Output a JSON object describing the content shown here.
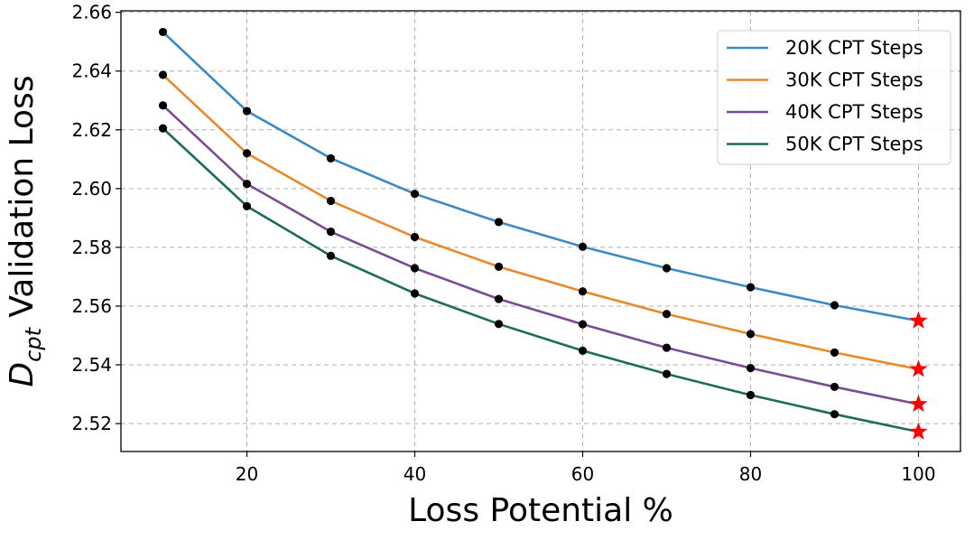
{
  "chart_data": {
    "type": "line",
    "title": "",
    "xlabel": "Loss Potential %",
    "ylabel_main": "D",
    "ylabel_sub": "cpt",
    "ylabel_rest": " Validation Loss",
    "x": [
      10,
      20,
      30,
      40,
      50,
      60,
      70,
      80,
      90,
      100
    ],
    "xlim": [
      5,
      105
    ],
    "ylim": [
      2.5105,
      2.6605
    ],
    "xticks": [
      20,
      40,
      60,
      80,
      100
    ],
    "xtick_labels": [
      "20",
      "40",
      "60",
      "80",
      "100"
    ],
    "yticks": [
      2.52,
      2.54,
      2.56,
      2.58,
      2.6,
      2.62,
      2.64,
      2.66
    ],
    "ytick_labels": [
      "2.52",
      "2.54",
      "2.56",
      "2.58",
      "2.60",
      "2.62",
      "2.64",
      "2.66"
    ],
    "grid": true,
    "legend_position": "top-right",
    "marker_color": "#000000",
    "final_marker": "star",
    "final_marker_color": "#ff0000",
    "series": [
      {
        "name": "20K CPT Steps",
        "color": "#3a8ac4",
        "values": [
          2.6533,
          2.6264,
          2.6103,
          2.5982,
          2.5886,
          2.5802,
          2.5729,
          2.5664,
          2.5603,
          2.555
        ]
      },
      {
        "name": "30K CPT Steps",
        "color": "#e8892c",
        "values": [
          2.6387,
          2.612,
          2.5958,
          2.5835,
          2.5734,
          2.565,
          2.5573,
          2.5505,
          2.5442,
          2.5385
        ]
      },
      {
        "name": "40K CPT Steps",
        "color": "#7b4b94",
        "values": [
          2.6283,
          2.6016,
          2.5853,
          2.5729,
          2.5624,
          2.5538,
          2.5458,
          2.5389,
          2.5325,
          2.5266
        ]
      },
      {
        "name": "50K CPT Steps",
        "color": "#1c6b5b",
        "values": [
          2.6205,
          2.594,
          2.5771,
          2.5643,
          2.5539,
          2.5448,
          2.5369,
          2.5297,
          2.5232,
          2.5172
        ]
      }
    ]
  }
}
